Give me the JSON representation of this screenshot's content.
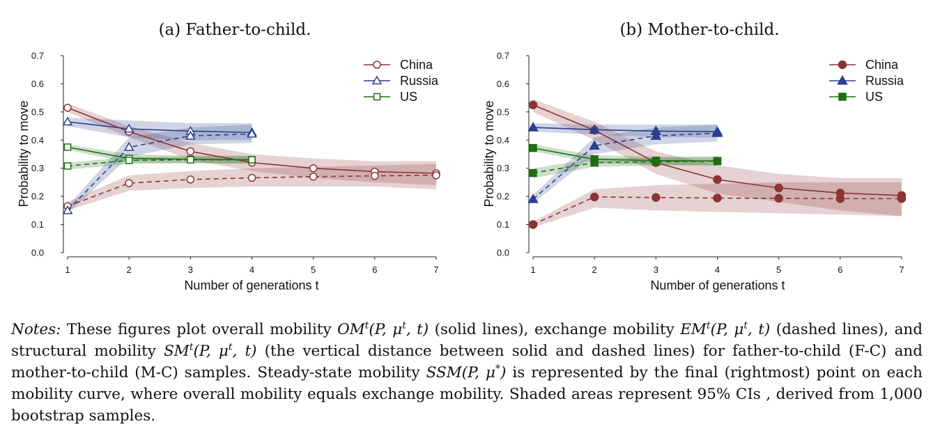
{
  "colors": {
    "China": "#8b3434",
    "Russia": "#2b3f8f",
    "US": "#1f6e12"
  },
  "chart_data": [
    {
      "type": "line",
      "title": "(a) Father-to-child.",
      "xlabel": "Number of generations t",
      "ylabel": "Probability to move",
      "xlim": [
        1,
        7
      ],
      "ylim": [
        0,
        0.7
      ],
      "xticks": [
        "1",
        "2",
        "3",
        "4",
        "5",
        "6",
        "7"
      ],
      "yticks": [
        "0.0",
        "0.1",
        "0.2",
        "0.3",
        "0.4",
        "0.5",
        "0.6",
        "0.7"
      ],
      "marker_style": "hollow",
      "legend": [
        "China",
        "Russia",
        "US"
      ],
      "legend_position": "top-right",
      "series": [
        {
          "name": "China",
          "kind": "overall",
          "line": "solid",
          "marker": "circle",
          "x": [
            1,
            2,
            3,
            4,
            5,
            6,
            7
          ],
          "y": [
            0.515,
            0.43,
            0.36,
            0.32,
            0.3,
            0.288,
            0.282
          ],
          "ci_low": [
            0.5,
            0.41,
            0.33,
            0.29,
            0.265,
            0.25,
            0.24
          ],
          "ci_high": [
            0.53,
            0.45,
            0.39,
            0.35,
            0.335,
            0.325,
            0.325
          ]
        },
        {
          "name": "China",
          "kind": "exchange",
          "line": "dashed",
          "marker": "circle",
          "x": [
            1,
            2,
            3,
            4,
            5,
            6,
            7
          ],
          "y": [
            0.165,
            0.247,
            0.26,
            0.266,
            0.27,
            0.273,
            0.275
          ],
          "ci_low": [
            0.15,
            0.22,
            0.23,
            0.235,
            0.235,
            0.235,
            0.225
          ],
          "ci_high": [
            0.18,
            0.275,
            0.29,
            0.3,
            0.305,
            0.31,
            0.315
          ]
        },
        {
          "name": "Russia",
          "kind": "overall",
          "line": "solid",
          "marker": "triangle",
          "x": [
            1,
            2,
            3,
            4
          ],
          "y": [
            0.465,
            0.44,
            0.432,
            0.427
          ],
          "ci_low": [
            0.45,
            0.41,
            0.4,
            0.4
          ],
          "ci_high": [
            0.48,
            0.47,
            0.46,
            0.46
          ]
        },
        {
          "name": "Russia",
          "kind": "exchange",
          "line": "dashed",
          "marker": "triangle",
          "x": [
            1,
            2,
            3,
            4
          ],
          "y": [
            0.15,
            0.375,
            0.415,
            0.422
          ],
          "ci_low": [
            0.14,
            0.34,
            0.385,
            0.39
          ],
          "ci_high": [
            0.165,
            0.41,
            0.445,
            0.455
          ]
        },
        {
          "name": "US",
          "kind": "overall",
          "line": "solid",
          "marker": "square",
          "x": [
            1,
            2,
            3,
            4
          ],
          "y": [
            0.375,
            0.335,
            0.332,
            0.33
          ],
          "ci_low": [
            0.365,
            0.32,
            0.318,
            0.315
          ],
          "ci_high": [
            0.385,
            0.35,
            0.345,
            0.345
          ]
        },
        {
          "name": "US",
          "kind": "exchange",
          "line": "dashed",
          "marker": "square",
          "x": [
            1,
            2,
            3,
            4
          ],
          "y": [
            0.308,
            0.328,
            0.33,
            0.33
          ],
          "ci_low": [
            0.295,
            0.315,
            0.318,
            0.318
          ],
          "ci_high": [
            0.32,
            0.34,
            0.342,
            0.342
          ]
        }
      ]
    },
    {
      "type": "line",
      "title": "(b) Mother-to-child.",
      "xlabel": "Number of generations t",
      "ylabel": "Probability to move",
      "xlim": [
        1,
        7
      ],
      "ylim": [
        0,
        0.7
      ],
      "xticks": [
        "1",
        "2",
        "3",
        "4",
        "5",
        "6",
        "7"
      ],
      "yticks": [
        "0.0",
        "0.1",
        "0.2",
        "0.3",
        "0.4",
        "0.5",
        "0.6",
        "0.7"
      ],
      "marker_style": "filled",
      "legend": [
        "China",
        "Russia",
        "US"
      ],
      "legend_position": "top-right",
      "series": [
        {
          "name": "China",
          "kind": "overall",
          "line": "solid",
          "marker": "circle",
          "x": [
            1,
            2,
            3,
            4,
            5,
            6,
            7
          ],
          "y": [
            0.525,
            0.435,
            0.32,
            0.26,
            0.23,
            0.212,
            0.203
          ],
          "ci_low": [
            0.5,
            0.4,
            0.28,
            0.21,
            0.18,
            0.15,
            0.13
          ],
          "ci_high": [
            0.545,
            0.465,
            0.36,
            0.31,
            0.28,
            0.265,
            0.265
          ]
        },
        {
          "name": "China",
          "kind": "exchange",
          "line": "dashed",
          "marker": "circle",
          "x": [
            1,
            2,
            3,
            4,
            5,
            6,
            7
          ],
          "y": [
            0.1,
            0.198,
            0.196,
            0.194,
            0.193,
            0.192,
            0.192
          ],
          "ci_low": [
            0.09,
            0.16,
            0.15,
            0.145,
            0.14,
            0.135,
            0.13
          ],
          "ci_high": [
            0.11,
            0.225,
            0.24,
            0.245,
            0.25,
            0.25,
            0.25
          ]
        },
        {
          "name": "Russia",
          "kind": "overall",
          "line": "solid",
          "marker": "triangle",
          "x": [
            1,
            2,
            3,
            4
          ],
          "y": [
            0.445,
            0.437,
            0.432,
            0.43
          ],
          "ci_low": [
            0.43,
            0.42,
            0.41,
            0.41
          ],
          "ci_high": [
            0.46,
            0.455,
            0.455,
            0.455
          ]
        },
        {
          "name": "Russia",
          "kind": "exchange",
          "line": "dashed",
          "marker": "triangle",
          "x": [
            1,
            2,
            3,
            4
          ],
          "y": [
            0.19,
            0.38,
            0.415,
            0.425
          ],
          "ci_low": [
            0.175,
            0.35,
            0.385,
            0.395
          ],
          "ci_high": [
            0.205,
            0.41,
            0.445,
            0.455
          ]
        },
        {
          "name": "US",
          "kind": "overall",
          "line": "solid",
          "marker": "square",
          "x": [
            1,
            2,
            3,
            4
          ],
          "y": [
            0.372,
            0.332,
            0.327,
            0.326
          ],
          "ci_low": [
            0.36,
            0.318,
            0.313,
            0.31
          ],
          "ci_high": [
            0.385,
            0.346,
            0.341,
            0.342
          ]
        },
        {
          "name": "US",
          "kind": "exchange",
          "line": "dashed",
          "marker": "square",
          "x": [
            1,
            2,
            3,
            4
          ],
          "y": [
            0.283,
            0.32,
            0.323,
            0.325
          ],
          "ci_low": [
            0.265,
            0.305,
            0.31,
            0.31
          ],
          "ci_high": [
            0.3,
            0.335,
            0.337,
            0.34
          ]
        }
      ]
    }
  ],
  "notes": {
    "label": "Notes:",
    "s1": " These figures plot overall mobility ",
    "om": "OM",
    "args_t": "(P, μ",
    "args_end": ", t)",
    "s2": " (solid lines), exchange mobility ",
    "em": "EM",
    "s3": " (dashed lines), and structural mobility ",
    "sm": "SM",
    "s4": " (the vertical distance between solid and dashed lines) for father-to-child (F-C) and mother-to-child (M-C) samples. Steady-state mobility ",
    "ssm": "SSM(P, μ",
    "star": "*",
    "ssm_end": ")",
    "s5": " is represented by the final (rightmost) point on each mobility curve, where overall mobility equals exchange mobility. Shaded areas represent 95% CIs , derived from 1,000 bootstrap samples.",
    "sup_t": "t"
  }
}
